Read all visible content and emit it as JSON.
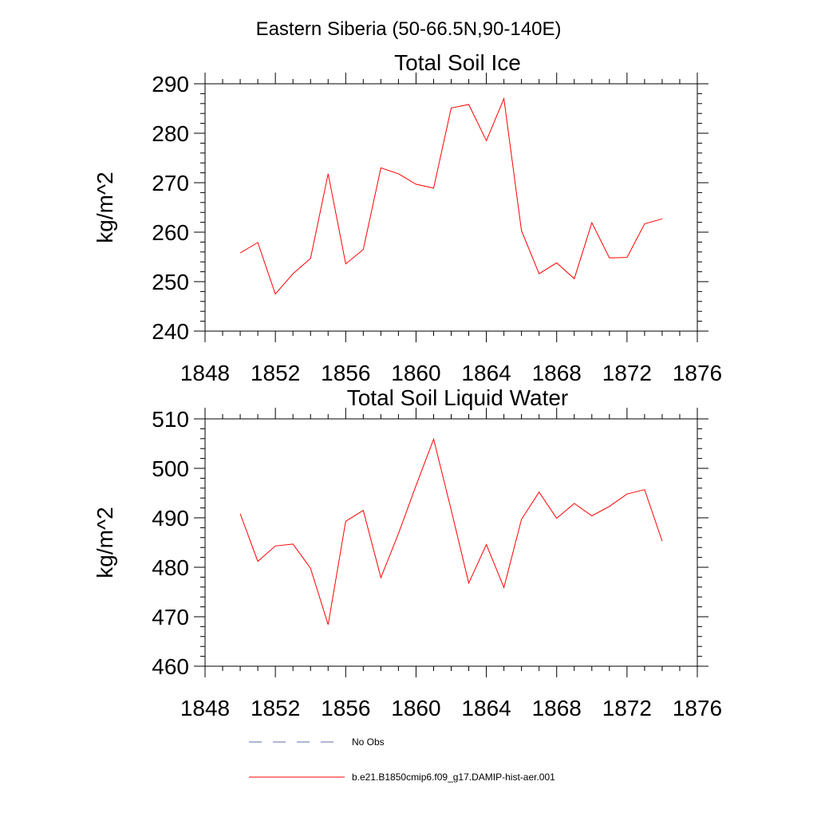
{
  "figure_title": "Eastern Siberia (50-66.5N,90-140E)",
  "colors": {
    "model": "#ff0000",
    "obs": "#5b6ea8",
    "axis": "#000000"
  },
  "legend": [
    {
      "label": "No Obs",
      "style": "dashed"
    },
    {
      "label": "b.e21.B1850cmip6.f09_g17.DAMIP-hist-aer.001",
      "style": "solid"
    }
  ],
  "chart_data": [
    {
      "type": "line",
      "title": "Total Soil Ice",
      "xlabel": "",
      "ylabel": "kg/m^2",
      "xlim": [
        1848,
        1876
      ],
      "ylim": [
        240,
        290
      ],
      "xticks": [
        1848,
        1852,
        1856,
        1860,
        1864,
        1868,
        1872,
        1876
      ],
      "yticks": [
        240,
        250,
        260,
        270,
        280,
        290
      ],
      "series": [
        {
          "name": "b.e21.B1850cmip6.f09_g17.DAMIP-hist-aer.001",
          "x": [
            1850,
            1851,
            1852,
            1853,
            1854,
            1855,
            1856,
            1857,
            1858,
            1859,
            1860,
            1861,
            1862,
            1863,
            1864,
            1865,
            1866,
            1867,
            1868,
            1869,
            1870,
            1871,
            1872,
            1873,
            1874
          ],
          "values": [
            255.8,
            257.9,
            247.5,
            251.6,
            254.7,
            271.8,
            253.6,
            256.5,
            273.0,
            271.8,
            269.7,
            268.9,
            285.1,
            285.8,
            278.5,
            287.0,
            260.3,
            251.6,
            253.8,
            250.6,
            261.9,
            254.8,
            254.9,
            261.7,
            262.7
          ]
        }
      ]
    },
    {
      "type": "line",
      "title": "Total Soil Liquid Water",
      "xlabel": "",
      "ylabel": "kg/m^2",
      "xlim": [
        1848,
        1876
      ],
      "ylim": [
        460,
        510
      ],
      "xticks": [
        1848,
        1852,
        1856,
        1860,
        1864,
        1868,
        1872,
        1876
      ],
      "yticks": [
        460,
        470,
        480,
        490,
        500,
        510
      ],
      "series": [
        {
          "name": "b.e21.B1850cmip6.f09_g17.DAMIP-hist-aer.001",
          "x": [
            1850,
            1851,
            1852,
            1853,
            1854,
            1855,
            1856,
            1857,
            1858,
            1859,
            1860,
            1861,
            1862,
            1863,
            1864,
            1865,
            1866,
            1867,
            1868,
            1869,
            1870,
            1871,
            1872,
            1873,
            1874
          ],
          "values": [
            490.8,
            481.2,
            484.3,
            484.7,
            479.8,
            468.4,
            489.3,
            491.5,
            477.9,
            486.8,
            496.5,
            505.9,
            491.6,
            476.8,
            484.6,
            475.9,
            489.7,
            495.2,
            489.9,
            492.9,
            490.4,
            492.3,
            494.8,
            495.7,
            485.3
          ]
        }
      ]
    }
  ]
}
